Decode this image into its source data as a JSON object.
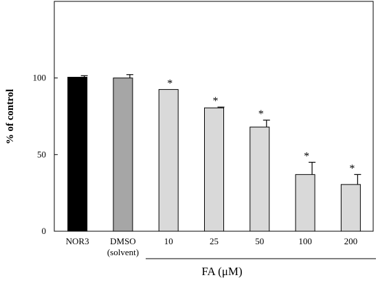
{
  "chart_data": {
    "type": "bar",
    "ylabel": "% of control",
    "xlabel": "FA (μM)",
    "ylim": [
      0,
      150
    ],
    "yticks": [
      0,
      50,
      100
    ],
    "grid": false,
    "categories": [
      {
        "label": "NOR3",
        "sublabel": "",
        "value": 100.5,
        "error": 1.0,
        "significant": false,
        "color": "#000000"
      },
      {
        "label": "DMSO",
        "sublabel": "(solvent)",
        "value": 100,
        "error": 2.2,
        "significant": false,
        "color": "#a6a6a6"
      },
      {
        "label": "10",
        "sublabel": "",
        "value": 92.5,
        "error": 0,
        "significant": true,
        "color": "#d9d9d9"
      },
      {
        "label": "25",
        "sublabel": "",
        "value": 80.5,
        "error": 0.5,
        "significant": true,
        "color": "#d9d9d9"
      },
      {
        "label": "50",
        "sublabel": "",
        "value": 68,
        "error": 4.5,
        "significant": true,
        "color": "#d9d9d9"
      },
      {
        "label": "100",
        "sublabel": "",
        "value": 37,
        "error": 8.0,
        "significant": true,
        "color": "#d9d9d9"
      },
      {
        "label": "200",
        "sublabel": "",
        "value": 30.5,
        "error": 6.5,
        "significant": true,
        "color": "#d9d9d9"
      }
    ],
    "significance_marker": "*"
  }
}
